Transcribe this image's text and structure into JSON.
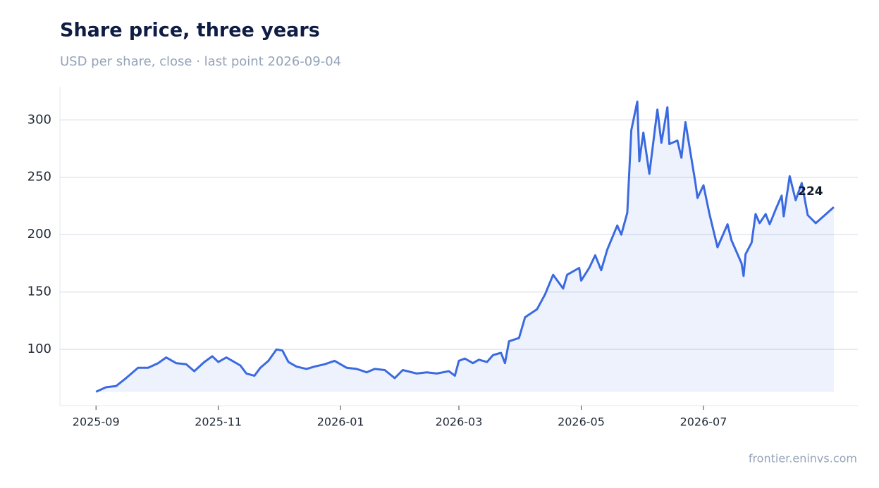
{
  "chart_data": {
    "type": "line",
    "title": "Share price, three years",
    "subtitle": "USD per share, close · last point 2026-09-04",
    "source": "frontier.eninvs.com",
    "x": [
      "2025-09-01",
      "2025-09-06",
      "2025-09-11",
      "2025-09-16",
      "2025-09-22",
      "2025-09-27",
      "2025-10-02",
      "2025-10-06",
      "2025-10-11",
      "2025-10-16",
      "2025-10-20",
      "2025-10-25",
      "2025-10-29",
      "2025-11-01",
      "2025-11-05",
      "2025-11-08",
      "2025-11-12",
      "2025-11-15",
      "2025-11-19",
      "2025-11-22",
      "2025-11-26",
      "2025-11-30",
      "2025-12-03",
      "2025-12-06",
      "2025-12-10",
      "2025-12-15",
      "2025-12-19",
      "2025-12-24",
      "2025-12-29",
      "2026-01-04",
      "2026-01-09",
      "2026-01-14",
      "2026-01-18",
      "2026-01-23",
      "2026-01-28",
      "2026-02-01",
      "2026-02-08",
      "2026-02-13",
      "2026-02-18",
      "2026-02-24",
      "2026-02-27",
      "2026-03-01",
      "2026-03-04",
      "2026-03-08",
      "2026-03-11",
      "2026-03-15",
      "2026-03-18",
      "2026-03-22",
      "2026-03-24",
      "2026-03-26",
      "2026-03-31",
      "2026-04-03",
      "2026-04-09",
      "2026-04-13",
      "2026-04-17",
      "2026-04-22",
      "2026-04-24",
      "2026-04-30",
      "2026-05-01",
      "2026-05-05",
      "2026-05-08",
      "2026-05-11",
      "2026-05-14",
      "2026-05-19",
      "2026-05-21",
      "2026-05-24",
      "2026-05-26",
      "2026-05-29",
      "2026-05-30",
      "2026-06-01",
      "2026-06-04",
      "2026-06-06",
      "2026-06-08",
      "2026-06-10",
      "2026-06-13",
      "2026-06-14",
      "2026-06-18",
      "2026-06-20",
      "2026-06-22",
      "2026-06-27",
      "2026-06-28",
      "2026-07-01",
      "2026-07-04",
      "2026-07-08",
      "2026-07-13",
      "2026-07-15",
      "2026-07-20",
      "2026-07-21",
      "2026-07-22",
      "2026-07-25",
      "2026-07-27",
      "2026-07-29",
      "2026-08-01",
      "2026-08-03",
      "2026-08-06",
      "2026-08-09",
      "2026-08-10",
      "2026-08-13",
      "2026-08-16",
      "2026-08-19",
      "2026-08-22",
      "2026-08-26",
      "2026-09-04"
    ],
    "series": [
      {
        "name": "Close",
        "color": "#3b6ae0",
        "values": [
          63,
          67,
          68,
          75,
          84,
          84,
          88,
          93,
          88,
          87,
          81,
          89,
          94,
          89,
          93,
          90,
          86,
          79,
          77,
          84,
          90,
          100,
          99,
          89,
          85,
          83,
          85,
          87,
          90,
          84,
          83,
          80,
          83,
          82,
          75,
          82,
          79,
          80,
          79,
          81,
          77,
          90,
          92,
          88,
          91,
          89,
          95,
          97,
          88,
          107,
          110,
          128,
          135,
          148,
          165,
          153,
          165,
          171,
          160,
          171,
          182,
          169,
          187,
          208,
          200,
          219,
          291,
          316,
          264,
          289,
          253,
          281,
          309,
          280,
          311,
          279,
          282,
          267,
          298,
          245,
          232,
          243,
          218,
          189,
          209,
          195,
          175,
          164,
          183,
          193,
          218,
          210,
          218,
          209,
          222,
          234,
          216,
          251,
          230,
          245,
          217,
          210,
          224
        ]
      }
    ],
    "xlim": [
      "2025-08-14",
      "2026-09-16"
    ],
    "xticks": [
      {
        "value": "2025-09-01",
        "label": "2025-09"
      },
      {
        "value": "2025-11-01",
        "label": "2025-11"
      },
      {
        "value": "2026-01-01",
        "label": "2026-01"
      },
      {
        "value": "2026-03-01",
        "label": "2026-03"
      },
      {
        "value": "2026-05-01",
        "label": "2026-05"
      },
      {
        "value": "2026-07-01",
        "label": "2026-07"
      }
    ],
    "ylim": [
      51,
      329
    ],
    "yticks": [
      100,
      150,
      200,
      250,
      300
    ],
    "grid": true
  }
}
